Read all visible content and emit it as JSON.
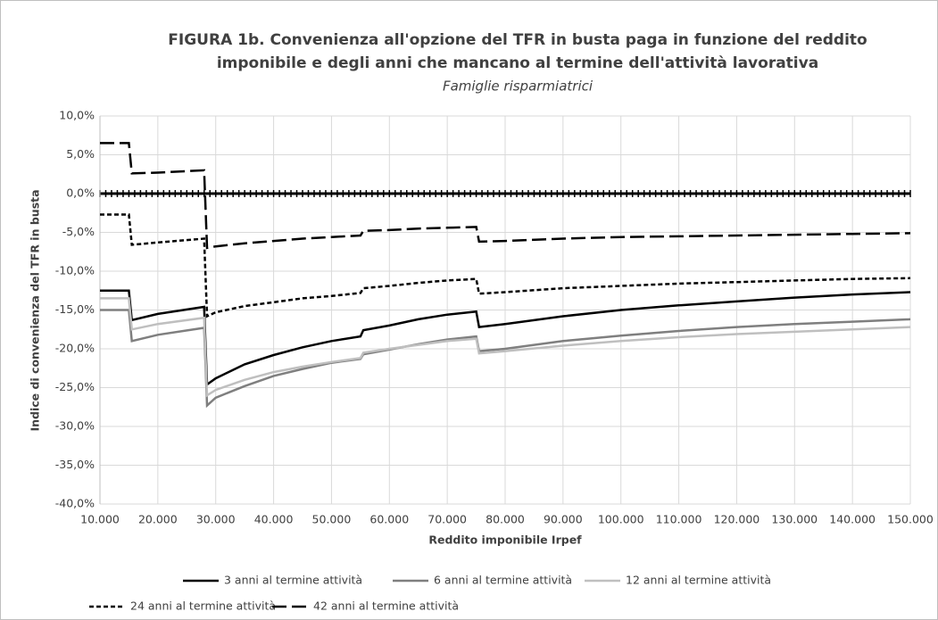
{
  "chart_data": {
    "type": "line",
    "title": [
      "FIGURA 1b. Convenienza all'opzione del TFR in busta paga in funzione del reddito",
      "imponibile e degli anni che mancano al termine dell'attività lavorativa"
    ],
    "subtitle": "Famiglie risparmiatrici",
    "x_label": "Reddito imponibile Irpef",
    "y_label": "Indice di convenienza del TFR in  busta",
    "x": [
      10000,
      15000,
      15500,
      20000,
      28000,
      28500,
      30000,
      35000,
      40000,
      45000,
      50000,
      55000,
      55500,
      60000,
      65000,
      70000,
      75000,
      75500,
      80000,
      90000,
      100000,
      110000,
      120000,
      130000,
      140000,
      150000
    ],
    "series": [
      {
        "name": "3 anni al termine attività",
        "color": "#000000",
        "linestyle": "solid",
        "values": [
          -12.5,
          -12.5,
          -16.3,
          -15.5,
          -14.6,
          -24.6,
          -23.8,
          -22,
          -20.8,
          -19.8,
          -19,
          -18.4,
          -17.6,
          -17,
          -16.2,
          -15.6,
          -15.2,
          -17.2,
          -16.8,
          -15.8,
          -15,
          -14.4,
          -13.9,
          -13.4,
          -13,
          -12.7
        ]
      },
      {
        "name": "6 anni al termine attività",
        "color": "#7f7f7f",
        "linestyle": "solid",
        "values": [
          -15,
          -15,
          -19,
          -18.2,
          -17.3,
          -27.3,
          -26.3,
          -24.8,
          -23.5,
          -22.6,
          -21.8,
          -21.3,
          -20.7,
          -20.1,
          -19.4,
          -18.8,
          -18.4,
          -20.3,
          -20,
          -19,
          -18.3,
          -17.7,
          -17.2,
          -16.8,
          -16.5,
          -16.2
        ]
      },
      {
        "name": "12 anni al termine attività",
        "color": "#bfbfbf",
        "linestyle": "solid",
        "values": [
          -13.5,
          -13.5,
          -17.5,
          -16.8,
          -16,
          -26,
          -25.3,
          -24,
          -23,
          -22.3,
          -21.7,
          -21.2,
          -20.5,
          -20,
          -19.5,
          -19,
          -18.7,
          -20.6,
          -20.3,
          -19.6,
          -19,
          -18.5,
          -18.1,
          -17.8,
          -17.5,
          -17.2
        ]
      },
      {
        "name": "24 anni al termine attività",
        "color": "#000000",
        "linestyle": "short-dash",
        "values": [
          -2.7,
          -2.7,
          -6.6,
          -6.3,
          -5.8,
          -15.8,
          -15.3,
          -14.5,
          -14,
          -13.5,
          -13.2,
          -12.8,
          -12.2,
          -11.9,
          -11.5,
          -11.2,
          -11,
          -12.9,
          -12.7,
          -12.2,
          -11.9,
          -11.6,
          -11.4,
          -11.2,
          -11,
          -10.9
        ]
      },
      {
        "name": "42 anni al termine attività",
        "color": "#000000",
        "linestyle": "long-dash",
        "values": [
          6.5,
          6.5,
          2.6,
          2.7,
          3,
          -7,
          -6.8,
          -6.4,
          -6.1,
          -5.8,
          -5.6,
          -5.4,
          -4.8,
          -4.7,
          -4.5,
          -4.4,
          -4.3,
          -6.2,
          -6.1,
          -5.8,
          -5.6,
          -5.5,
          -5.4,
          -5.3,
          -5.2,
          -5.1
        ]
      }
    ],
    "xlim": [
      10000,
      150000
    ],
    "ylim": [
      -40,
      10
    ],
    "xticks": [
      {
        "value": 10000,
        "label": "10.000"
      },
      {
        "value": 20000,
        "label": "20.000"
      },
      {
        "value": 30000,
        "label": "30.000"
      },
      {
        "value": 40000,
        "label": "40.000"
      },
      {
        "value": 50000,
        "label": "50.000"
      },
      {
        "value": 60000,
        "label": "60.000"
      },
      {
        "value": 70000,
        "label": "70.000"
      },
      {
        "value": 80000,
        "label": "80.000"
      },
      {
        "value": 90000,
        "label": "90.000"
      },
      {
        "value": 100000,
        "label": "100.000"
      },
      {
        "value": 110000,
        "label": "110.000"
      },
      {
        "value": 120000,
        "label": "120.000"
      },
      {
        "value": 130000,
        "label": "130.000"
      },
      {
        "value": 140000,
        "label": "140.000"
      },
      {
        "value": 150000,
        "label": "150.000"
      }
    ],
    "yticks": [
      {
        "value": 10,
        "label": "10,0%"
      },
      {
        "value": 5,
        "label": "5,0%"
      },
      {
        "value": 0,
        "label": "0,0%"
      },
      {
        "value": -5,
        "label": "-5,0%"
      },
      {
        "value": -10,
        "label": "-10,0%"
      },
      {
        "value": -15,
        "label": "-15,0%"
      },
      {
        "value": -20,
        "label": "-20,0%"
      },
      {
        "value": -25,
        "label": "-25,0%"
      },
      {
        "value": -30,
        "label": "-30,0%"
      },
      {
        "value": -35,
        "label": "-35,0%"
      },
      {
        "value": -40,
        "label": "-40,0%"
      }
    ],
    "grid": true,
    "legend": "bottom"
  }
}
